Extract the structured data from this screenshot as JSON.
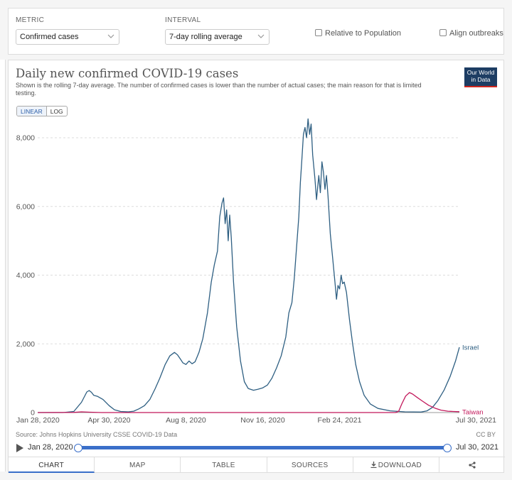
{
  "controls": {
    "metric_label": "METRIC",
    "metric_value": "Confirmed cases",
    "interval_label": "INTERVAL",
    "interval_value": "7-day rolling average",
    "relative_label": "Relative to Population",
    "align_label": "Align outbreaks"
  },
  "header": {
    "title": "Daily new confirmed COVID-19 cases",
    "subtitle": "Shown is the rolling 7-day average. The number of confirmed cases is lower than the number of actual cases; the main reason for that is limited testing.",
    "logo_line1": "Our World",
    "logo_line2": "in Data"
  },
  "scale": {
    "linear": "LINEAR",
    "log": "LOG",
    "selected": "LINEAR"
  },
  "footer": {
    "source": "Source: Johns Hopkins University CSSE COVID-19 Data",
    "license": "CC BY"
  },
  "timeline": {
    "start": "Jan 28, 2020",
    "end": "Jul 30, 2021"
  },
  "tabs": [
    "CHART",
    "MAP",
    "TABLE",
    "SOURCES",
    "DOWNLOAD"
  ],
  "colors": {
    "israel": "#2e5f82",
    "taiwan": "#c2185b",
    "accent": "#3a6fc9"
  },
  "chart_data": {
    "type": "line",
    "title": "Daily new confirmed COVID-19 cases",
    "xlim": [
      "2020-01-28",
      "2021-07-30"
    ],
    "ylim": [
      0,
      8600
    ],
    "yticks": [
      0,
      2000,
      4000,
      6000,
      8000
    ],
    "ytick_labels": [
      "0",
      "2,000",
      "4,000",
      "6,000",
      "8,000"
    ],
    "xticks": [
      "2020-01-28",
      "2020-04-30",
      "2020-08-08",
      "2020-11-16",
      "2021-02-24",
      "2021-07-30"
    ],
    "xtick_labels": [
      "Jan 28, 2020",
      "Apr 30, 2020",
      "Aug 8, 2020",
      "Nov 16, 2020",
      "Feb 24, 2021",
      "Jul 30, 2021"
    ],
    "grid": "horizontal dashed",
    "legend": "end-of-line labels",
    "series": [
      {
        "name": "Israel",
        "color": "#2e5f82",
        "points": [
          [
            "2020-01-28",
            0
          ],
          [
            "2020-03-01",
            0
          ],
          [
            "2020-03-15",
            30
          ],
          [
            "2020-03-25",
            300
          ],
          [
            "2020-04-01",
            600
          ],
          [
            "2020-04-04",
            640
          ],
          [
            "2020-04-07",
            590
          ],
          [
            "2020-04-10",
            500
          ],
          [
            "2020-04-15",
            470
          ],
          [
            "2020-04-22",
            380
          ],
          [
            "2020-04-30",
            200
          ],
          [
            "2020-05-07",
            80
          ],
          [
            "2020-05-15",
            30
          ],
          [
            "2020-05-25",
            20
          ],
          [
            "2020-06-01",
            40
          ],
          [
            "2020-06-08",
            110
          ],
          [
            "2020-06-15",
            200
          ],
          [
            "2020-06-22",
            380
          ],
          [
            "2020-06-29",
            700
          ],
          [
            "2020-07-05",
            1000
          ],
          [
            "2020-07-12",
            1400
          ],
          [
            "2020-07-18",
            1650
          ],
          [
            "2020-07-24",
            1750
          ],
          [
            "2020-07-28",
            1680
          ],
          [
            "2020-08-01",
            1550
          ],
          [
            "2020-08-04",
            1450
          ],
          [
            "2020-08-08",
            1400
          ],
          [
            "2020-08-12",
            1500
          ],
          [
            "2020-08-16",
            1420
          ],
          [
            "2020-08-20",
            1480
          ],
          [
            "2020-08-25",
            1750
          ],
          [
            "2020-08-30",
            2150
          ],
          [
            "2020-09-05",
            2900
          ],
          [
            "2020-09-10",
            3800
          ],
          [
            "2020-09-14",
            4300
          ],
          [
            "2020-09-18",
            4700
          ],
          [
            "2020-09-21",
            5700
          ],
          [
            "2020-09-24",
            6100
          ],
          [
            "2020-09-26",
            6250
          ],
          [
            "2020-09-28",
            5500
          ],
          [
            "2020-09-30",
            5900
          ],
          [
            "2020-10-02",
            5000
          ],
          [
            "2020-10-04",
            5750
          ],
          [
            "2020-10-06",
            5100
          ],
          [
            "2020-10-09",
            3800
          ],
          [
            "2020-10-13",
            2500
          ],
          [
            "2020-10-18",
            1500
          ],
          [
            "2020-10-23",
            900
          ],
          [
            "2020-10-28",
            700
          ],
          [
            "2020-11-04",
            650
          ],
          [
            "2020-11-10",
            680
          ],
          [
            "2020-11-16",
            720
          ],
          [
            "2020-11-22",
            800
          ],
          [
            "2020-11-28",
            1000
          ],
          [
            "2020-12-04",
            1300
          ],
          [
            "2020-12-10",
            1650
          ],
          [
            "2020-12-16",
            2200
          ],
          [
            "2020-12-20",
            2900
          ],
          [
            "2020-12-24",
            3200
          ],
          [
            "2020-12-27",
            3900
          ],
          [
            "2020-12-30",
            4800
          ],
          [
            "2021-01-02",
            5700
          ],
          [
            "2021-01-04",
            6700
          ],
          [
            "2021-01-06",
            7400
          ],
          [
            "2021-01-08",
            8100
          ],
          [
            "2021-01-10",
            8300
          ],
          [
            "2021-01-12",
            8000
          ],
          [
            "2021-01-14",
            8550
          ],
          [
            "2021-01-16",
            8100
          ],
          [
            "2021-01-18",
            8400
          ],
          [
            "2021-01-20",
            7500
          ],
          [
            "2021-01-23",
            6800
          ],
          [
            "2021-01-25",
            6200
          ],
          [
            "2021-01-28",
            6900
          ],
          [
            "2021-01-30",
            6400
          ],
          [
            "2021-02-01",
            7300
          ],
          [
            "2021-02-03",
            7000
          ],
          [
            "2021-02-05",
            6500
          ],
          [
            "2021-02-07",
            6900
          ],
          [
            "2021-02-09",
            6300
          ],
          [
            "2021-02-12",
            5200
          ],
          [
            "2021-02-15",
            4500
          ],
          [
            "2021-02-18",
            3800
          ],
          [
            "2021-02-20",
            3300
          ],
          [
            "2021-02-22",
            3700
          ],
          [
            "2021-02-24",
            3600
          ],
          [
            "2021-02-26",
            4000
          ],
          [
            "2021-02-28",
            3750
          ],
          [
            "2021-03-02",
            3800
          ],
          [
            "2021-03-05",
            3500
          ],
          [
            "2021-03-09",
            2700
          ],
          [
            "2021-03-13",
            2000
          ],
          [
            "2021-03-17",
            1400
          ],
          [
            "2021-03-22",
            900
          ],
          [
            "2021-03-28",
            500
          ],
          [
            "2021-04-05",
            250
          ],
          [
            "2021-04-15",
            120
          ],
          [
            "2021-05-01",
            50
          ],
          [
            "2021-05-20",
            20
          ],
          [
            "2021-06-10",
            15
          ],
          [
            "2021-06-18",
            50
          ],
          [
            "2021-06-25",
            150
          ],
          [
            "2021-07-02",
            350
          ],
          [
            "2021-07-10",
            650
          ],
          [
            "2021-07-18",
            1050
          ],
          [
            "2021-07-25",
            1500
          ],
          [
            "2021-07-30",
            1900
          ]
        ]
      },
      {
        "name": "Taiwan",
        "color": "#c2185b",
        "points": [
          [
            "2020-01-28",
            0
          ],
          [
            "2020-03-15",
            5
          ],
          [
            "2020-03-25",
            20
          ],
          [
            "2020-04-05",
            10
          ],
          [
            "2020-04-20",
            0
          ],
          [
            "2021-05-08",
            0
          ],
          [
            "2021-05-12",
            40
          ],
          [
            "2021-05-16",
            250
          ],
          [
            "2021-05-21",
            480
          ],
          [
            "2021-05-26",
            580
          ],
          [
            "2021-05-30",
            540
          ],
          [
            "2021-06-05",
            440
          ],
          [
            "2021-06-12",
            330
          ],
          [
            "2021-06-20",
            210
          ],
          [
            "2021-06-28",
            130
          ],
          [
            "2021-07-06",
            70
          ],
          [
            "2021-07-15",
            40
          ],
          [
            "2021-07-22",
            30
          ],
          [
            "2021-07-30",
            25
          ]
        ]
      }
    ]
  }
}
